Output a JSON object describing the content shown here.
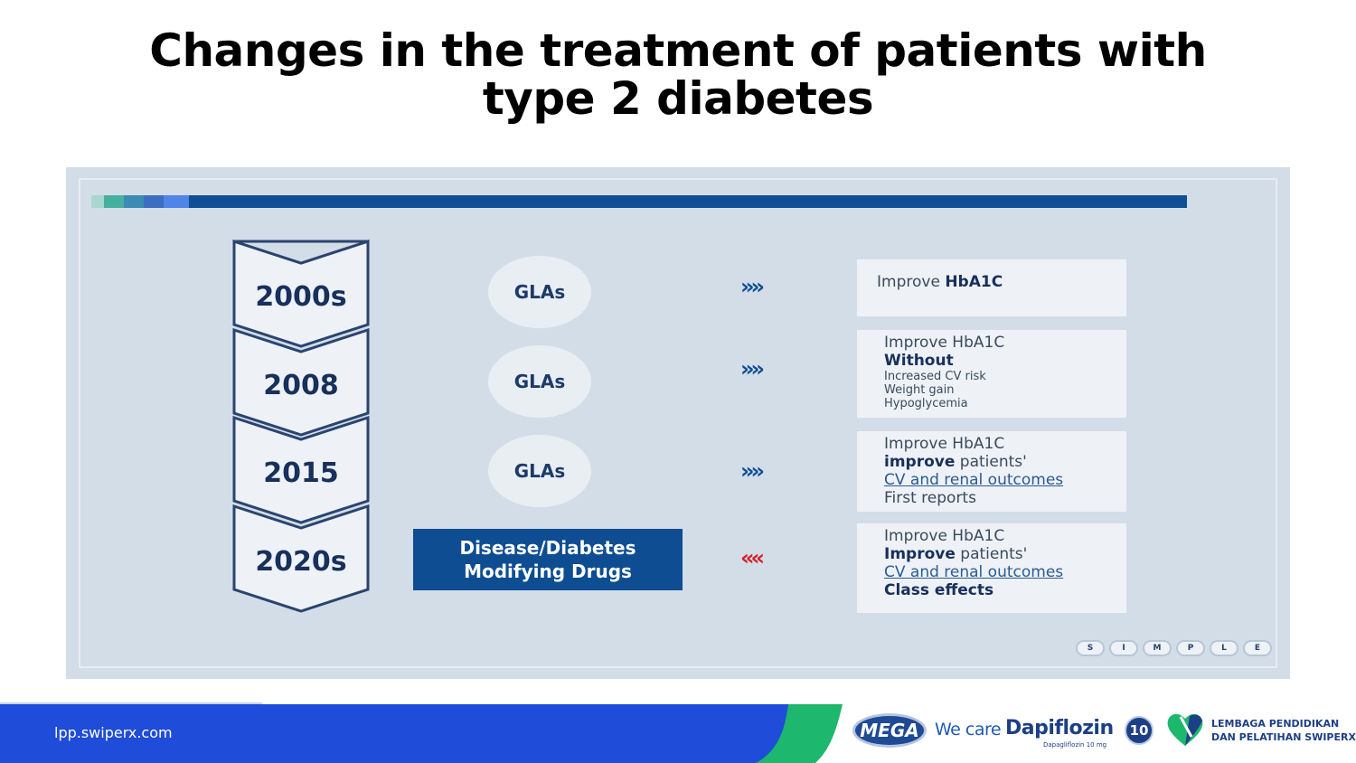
{
  "title": {
    "line1": "Changes in the treatment of patients with",
    "line2": "type 2 diabetes"
  },
  "accent_colors": [
    "#a6d8d0",
    "#46b0a0",
    "#3d8bb3",
    "#3c6dc0",
    "#4f85e8",
    "#0f4f95"
  ],
  "timeline": {
    "years": [
      "2000s",
      "2008",
      "2015",
      "2020s"
    ],
    "glas_labels": [
      "GLAs",
      "GLAs",
      "GLAs"
    ],
    "disease_line1": "Disease/Diabetes",
    "disease_line2": "Modifying Drugs",
    "arrows": [
      "»»",
      "»»",
      "»»",
      "««"
    ],
    "arrow_colors": [
      "#0e4d92",
      "#0e4d92",
      "#0e4d92",
      "#d21f2b"
    ]
  },
  "outcomes": {
    "box1": {
      "pre": "Improve ",
      "bold": "HbA1C"
    },
    "box2": {
      "line1": "Improve HbA1C",
      "line2": "Without",
      "line3": "Increased CV risk",
      "line4": "Weight gain",
      "line5": "Hypoglycemia"
    },
    "box3": {
      "line1": "Improve HbA1C",
      "line2_bold": "improve",
      "line2_rest": " patients'",
      "line3": "CV and renal outcomes",
      "line4": "First reports"
    },
    "box4": {
      "line1": "Improve HbA1C",
      "line2_bold": "Improve",
      "line2_rest": " patients'",
      "line3": "CV and renal outcomes",
      "line4": "Class effects"
    }
  },
  "simple_letters": [
    "S",
    "I",
    "M",
    "P",
    "L",
    "E"
  ],
  "footer": {
    "url": "lpp.swiperx.com",
    "mega": "MEGA",
    "we_care": "We care",
    "dapiflozin": "Dapiflozin",
    "dapiflozin_sub": "Dapagliflozin 10 mg",
    "ten": "10",
    "lpp_line1": "LEMBAGA PENDIDIKAN",
    "lpp_line2": "DAN PELATIHAN SWIPERX",
    "blue": "#1f4cd8",
    "green": "#1db76d"
  }
}
